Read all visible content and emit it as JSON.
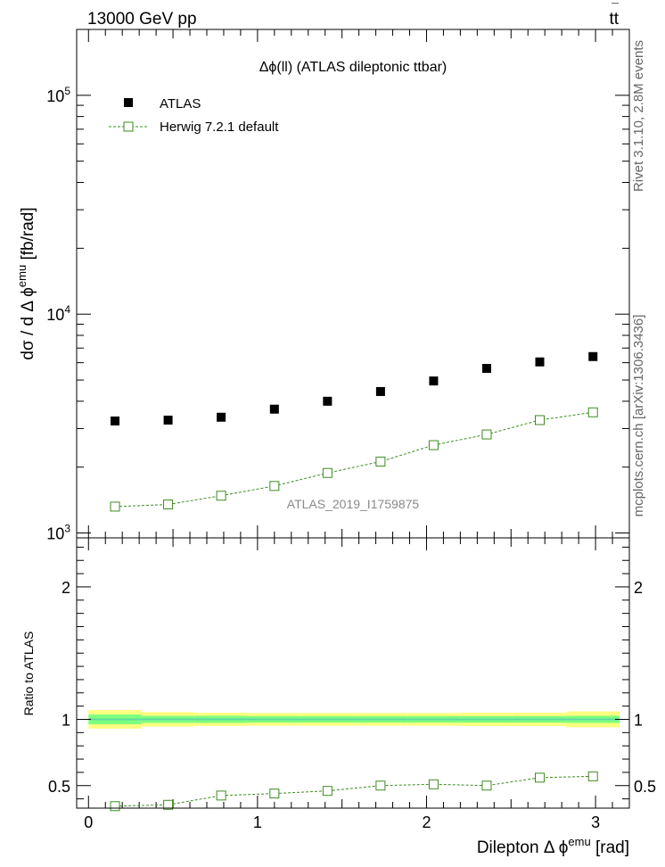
{
  "header": {
    "beam": "13000 GeV pp",
    "process_main": "tt",
    "process_bar": "¯"
  },
  "side_labels": {
    "rivet": "Rivet 3.1.10, 2.8M events",
    "mcplots": "mcplots.cern.ch [arXiv:1306.3436]"
  },
  "colors": {
    "data": "#000000",
    "mc": "#3c8c1e",
    "band_outer": "#ffff7f",
    "band_inner": "#7fff7f",
    "band_center": "#5fd8a0"
  },
  "chart_data": [
    {
      "type": "scatter",
      "panel": "main",
      "title": "Δϕ(ll) (ATLAS dileptonic ttbar)",
      "analysis_tag": "ATLAS_2019_I1759875",
      "ylabel": {
        "base": "dσ / d Δ ϕ",
        "sup": "emu",
        "unit": " [fb/rad]"
      },
      "yscale": "log",
      "ylim": [
        950,
        200000
      ],
      "xlim": [
        -0.07,
        3.2
      ],
      "yticks": [
        {
          "value": 1000,
          "base": "10",
          "exp": "3"
        },
        {
          "value": 10000,
          "base": "10",
          "exp": "4"
        },
        {
          "value": 100000,
          "base": "10",
          "exp": "5"
        }
      ],
      "x": [
        0.157,
        0.471,
        0.785,
        1.1,
        1.414,
        1.728,
        2.042,
        2.356,
        2.67,
        2.985
      ],
      "series": [
        {
          "name": "ATLAS",
          "marker": "filled-square",
          "values": [
            3250,
            3280,
            3380,
            3680,
            4000,
            4430,
            4950,
            5650,
            6050,
            6400
          ]
        },
        {
          "name": "Herwig 7.2.1 default",
          "marker": "open-square-dashed",
          "values": [
            1320,
            1350,
            1480,
            1640,
            1880,
            2120,
            2520,
            2820,
            3280,
            3560
          ]
        }
      ],
      "legend_position": "top-left"
    },
    {
      "type": "scatter",
      "panel": "ratio",
      "ylabel": "Ratio to ATLAS",
      "xlabel": {
        "base": "Dilepton Δ ϕ",
        "sup": "emu",
        "unit": " [rad]"
      },
      "ylim": [
        0.33,
        2.37
      ],
      "xlim": [
        -0.07,
        3.2
      ],
      "yticks": [
        {
          "value": 0.5,
          "label": "0.5"
        },
        {
          "value": 1,
          "label": "1"
        },
        {
          "value": 2,
          "label": "2"
        }
      ],
      "xticks": [
        {
          "value": 0,
          "label": "0"
        },
        {
          "value": 1,
          "label": "1"
        },
        {
          "value": 2,
          "label": "2"
        },
        {
          "value": 3,
          "label": "3"
        }
      ],
      "x": [
        0.157,
        0.471,
        0.785,
        1.1,
        1.414,
        1.728,
        2.042,
        2.356,
        2.67,
        2.985
      ],
      "series": [
        {
          "name": "Herwig 7.2.1 default",
          "values": [
            0.345,
            0.355,
            0.425,
            0.44,
            0.46,
            0.5,
            0.51,
            0.5,
            0.56,
            0.57
          ]
        }
      ],
      "band": {
        "edges": [
          0,
          0.314,
          0.628,
          0.942,
          1.257,
          1.571,
          1.885,
          2.199,
          2.513,
          2.827,
          3.142
        ],
        "inner_half": [
          0.037,
          0.027,
          0.027,
          0.025,
          0.025,
          0.025,
          0.025,
          0.025,
          0.025,
          0.027
        ],
        "outer_half": [
          0.07,
          0.055,
          0.05,
          0.048,
          0.048,
          0.048,
          0.048,
          0.05,
          0.05,
          0.06
        ]
      }
    }
  ]
}
